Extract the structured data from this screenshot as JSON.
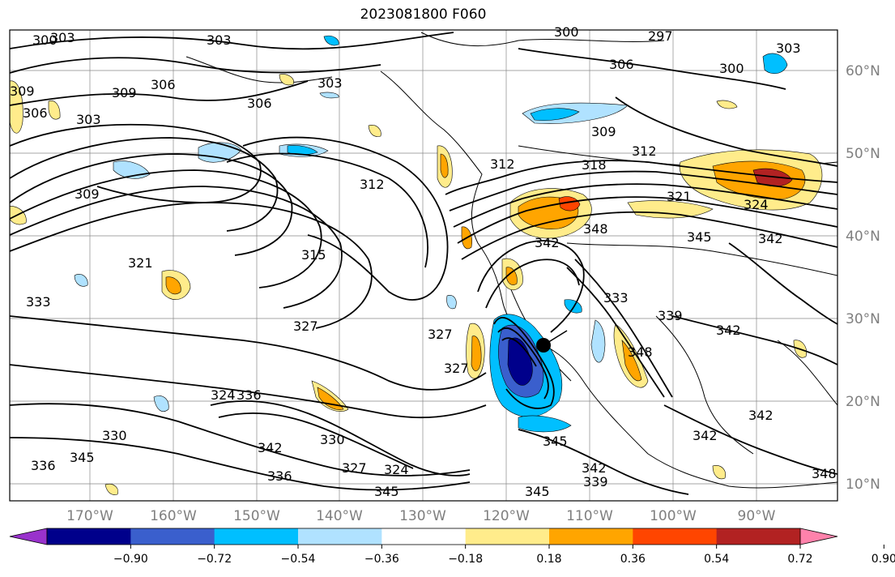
{
  "title": "2023081800 F060",
  "map": {
    "latitude_labels": [
      "60°N",
      "50°N",
      "40°N",
      "30°N",
      "20°N",
      "10°N"
    ],
    "longitude_labels": [
      "170°W",
      "160°W",
      "150°W",
      "140°W",
      "130°W",
      "120°W",
      "110°W",
      "100°W",
      "90°W"
    ],
    "contour_labels": [
      {
        "text": "300"
      },
      {
        "text": "303"
      },
      {
        "text": "303"
      },
      {
        "text": "300"
      },
      {
        "text": "297"
      },
      {
        "text": "306"
      },
      {
        "text": "300"
      },
      {
        "text": "303"
      },
      {
        "text": "309"
      },
      {
        "text": "306"
      },
      {
        "text": "309"
      },
      {
        "text": "306"
      },
      {
        "text": "303"
      },
      {
        "text": "306"
      },
      {
        "text": "303"
      },
      {
        "text": "309"
      },
      {
        "text": "312"
      },
      {
        "text": "309"
      },
      {
        "text": "312"
      },
      {
        "text": "318"
      },
      {
        "text": "312"
      },
      {
        "text": "321"
      },
      {
        "text": "324"
      },
      {
        "text": "348"
      },
      {
        "text": "342"
      },
      {
        "text": "345"
      },
      {
        "text": "342"
      },
      {
        "text": "321"
      },
      {
        "text": "315"
      },
      {
        "text": "333"
      },
      {
        "text": "333"
      },
      {
        "text": "339"
      },
      {
        "text": "342"
      },
      {
        "text": "327"
      },
      {
        "text": "327"
      },
      {
        "text": "327"
      },
      {
        "text": "336"
      },
      {
        "text": "348"
      },
      {
        "text": "342"
      },
      {
        "text": "330"
      },
      {
        "text": "342"
      },
      {
        "text": "330"
      },
      {
        "text": "345"
      },
      {
        "text": "336"
      },
      {
        "text": "345"
      },
      {
        "text": "327"
      },
      {
        "text": "324"
      },
      {
        "text": "345"
      },
      {
        "text": "342"
      },
      {
        "text": "339"
      },
      {
        "text": "345"
      },
      {
        "text": "342"
      },
      {
        "text": "348"
      },
      {
        "text": "336"
      },
      {
        "text": "324"
      }
    ]
  },
  "colorbar": {
    "ticks": [
      "−0.90",
      "−0.72",
      "−0.54",
      "−0.36",
      "−0.18",
      "0.18",
      "0.36",
      "0.54",
      "0.72",
      "0.90"
    ],
    "colors": [
      "#9932cc",
      "#00008b",
      "#3a5fcd",
      "#00bfff",
      "#b0e2ff",
      "#ffffff",
      "#ffec8b",
      "#ffa500",
      "#ff4500",
      "#b22222",
      "#ff82ab"
    ]
  }
}
